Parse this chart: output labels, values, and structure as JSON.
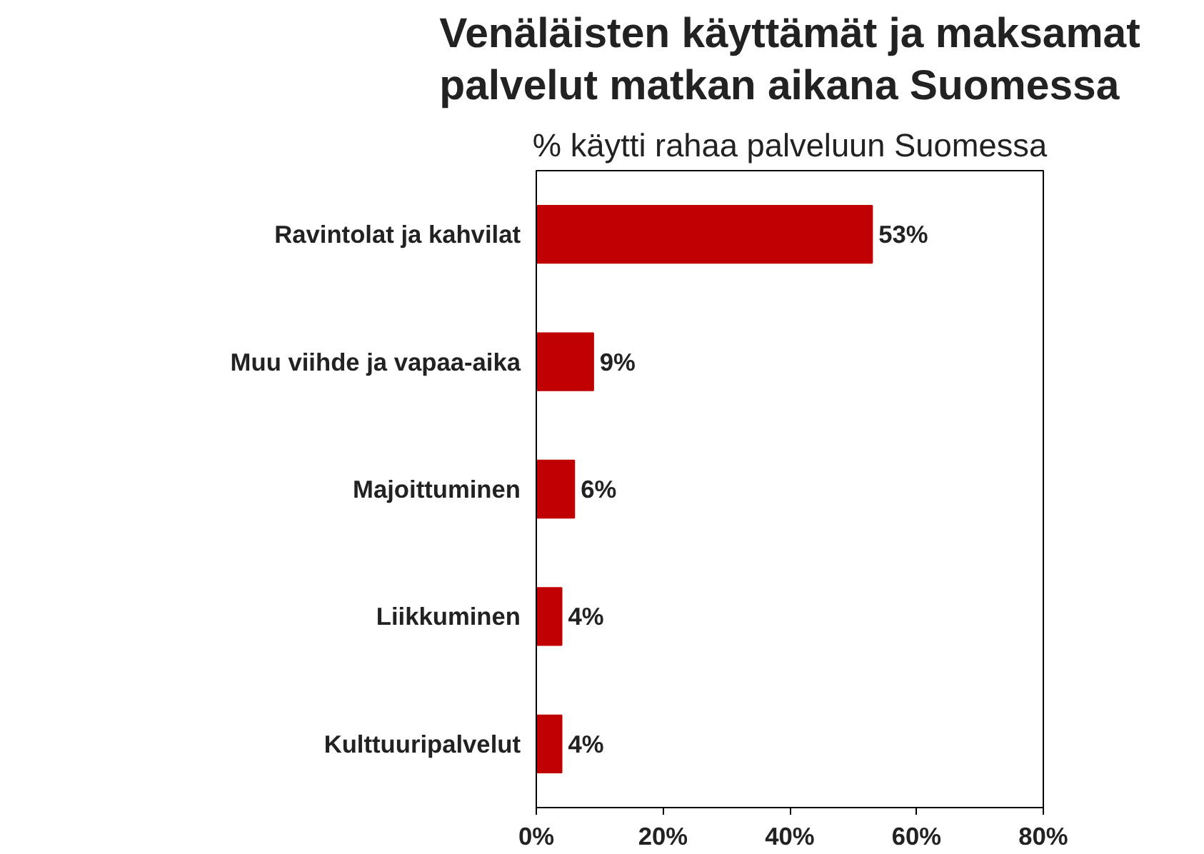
{
  "chart_data": {
    "type": "bar",
    "orientation": "horizontal",
    "title": "Venäläisten käyttämät ja maksamat palvelut matkan aikana Suomessa",
    "subtitle": "% käytti rahaa palveluun Suomessa",
    "categories": [
      "Ravintolat ja kahvilat",
      "Muu viihde ja vapaa-aika",
      "Majoittuminen",
      "Liikkuminen",
      "Kulttuuripalvelut"
    ],
    "values": [
      53,
      9,
      6,
      4,
      4
    ],
    "value_labels": [
      "53%",
      "9%",
      "6%",
      "4%",
      "4%"
    ],
    "color": "#c00000",
    "xlim": [
      0,
      80
    ],
    "xticks": [
      {
        "value": 0,
        "label": "0%"
      },
      {
        "value": 20,
        "label": "20%"
      },
      {
        "value": 40,
        "label": "40%"
      },
      {
        "value": 60,
        "label": "60%"
      },
      {
        "value": 80,
        "label": "80%"
      }
    ],
    "grid": false
  }
}
